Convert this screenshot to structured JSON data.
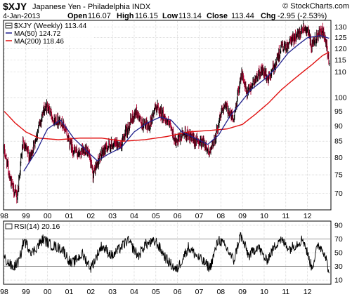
{
  "header": {
    "symbol": "$XJY",
    "name": "Japanese Yen - Philadelphia INDX",
    "brand": "© StockCharts.com",
    "date": "4-Jan-2013",
    "open_label": "Open",
    "open": "116.07",
    "high_label": "High",
    "high": "116.15",
    "low_label": "Low",
    "low": "113.14",
    "close_label": "Close",
    "close": "113.44",
    "chg_label": "Chg",
    "chg": "-2.95 (-2.53%)"
  },
  "legend": {
    "price": "$XJY (Weekly) 113.44",
    "ma50": "MA(50) 124.72",
    "ma200": "MA(200) 118.46"
  },
  "rsi_label": "RSI(14) 20.16",
  "colors": {
    "price": "#000000",
    "ma50": "#1f1f8c",
    "ma200": "#e01010",
    "down_bar": "#b00030",
    "grid": "#c8c8c8",
    "rsi_band": "#888888"
  },
  "chart_data": [
    {
      "type": "bar",
      "title": "$XJY Japanese Yen - Philadelphia INDX",
      "interval": "weekly",
      "ylim": [
        66,
        133
      ],
      "yscale": "log",
      "yticks": [
        70,
        75,
        80,
        85,
        90,
        95,
        100,
        110,
        115,
        120,
        125,
        130
      ],
      "x_ticks": [
        "98",
        "99",
        "00",
        "01",
        "02",
        "03",
        "04",
        "05",
        "06",
        "07",
        "08",
        "09",
        "10",
        "11",
        "12"
      ],
      "grid": true,
      "price_keypoints": [
        {
          "year": 1998.0,
          "close": 82
        },
        {
          "year": 1998.35,
          "close": 72
        },
        {
          "year": 1998.6,
          "close": 69
        },
        {
          "year": 1998.85,
          "close": 84
        },
        {
          "year": 1999.2,
          "close": 80
        },
        {
          "year": 1999.5,
          "close": 87
        },
        {
          "year": 1999.8,
          "close": 95
        },
        {
          "year": 2000.0,
          "close": 97
        },
        {
          "year": 2000.3,
          "close": 92
        },
        {
          "year": 2000.6,
          "close": 92
        },
        {
          "year": 2000.9,
          "close": 87
        },
        {
          "year": 2001.2,
          "close": 82
        },
        {
          "year": 2001.5,
          "close": 81
        },
        {
          "year": 2001.8,
          "close": 83
        },
        {
          "year": 2002.1,
          "close": 75
        },
        {
          "year": 2002.4,
          "close": 80
        },
        {
          "year": 2002.7,
          "close": 83
        },
        {
          "year": 2003.0,
          "close": 84
        },
        {
          "year": 2003.4,
          "close": 84
        },
        {
          "year": 2003.8,
          "close": 91
        },
        {
          "year": 2004.1,
          "close": 95
        },
        {
          "year": 2004.4,
          "close": 90
        },
        {
          "year": 2004.7,
          "close": 90
        },
        {
          "year": 2005.0,
          "close": 97
        },
        {
          "year": 2005.4,
          "close": 93
        },
        {
          "year": 2005.7,
          "close": 89
        },
        {
          "year": 2005.95,
          "close": 84
        },
        {
          "year": 2006.3,
          "close": 88
        },
        {
          "year": 2006.6,
          "close": 86
        },
        {
          "year": 2006.9,
          "close": 85
        },
        {
          "year": 2007.2,
          "close": 85
        },
        {
          "year": 2007.5,
          "close": 81
        },
        {
          "year": 2007.8,
          "close": 88
        },
        {
          "year": 2008.1,
          "close": 97
        },
        {
          "year": 2008.3,
          "close": 96
        },
        {
          "year": 2008.6,
          "close": 92
        },
        {
          "year": 2008.95,
          "close": 110
        },
        {
          "year": 2009.2,
          "close": 101
        },
        {
          "year": 2009.5,
          "close": 106
        },
        {
          "year": 2009.9,
          "close": 111
        },
        {
          "year": 2010.2,
          "close": 107
        },
        {
          "year": 2010.5,
          "close": 113
        },
        {
          "year": 2010.8,
          "close": 121
        },
        {
          "year": 2011.0,
          "close": 120
        },
        {
          "year": 2011.2,
          "close": 123
        },
        {
          "year": 2011.5,
          "close": 126
        },
        {
          "year": 2011.8,
          "close": 130
        },
        {
          "year": 2012.0,
          "close": 129
        },
        {
          "year": 2012.2,
          "close": 120
        },
        {
          "year": 2012.45,
          "close": 126
        },
        {
          "year": 2012.7,
          "close": 128
        },
        {
          "year": 2012.85,
          "close": 122
        },
        {
          "year": 2013.0,
          "close": 113.44
        }
      ],
      "ma50_keypoints": [
        {
          "year": 1998.9,
          "value": 76
        },
        {
          "year": 1999.5,
          "value": 82
        },
        {
          "year": 2000.0,
          "value": 89
        },
        {
          "year": 2000.6,
          "value": 92
        },
        {
          "year": 2001.2,
          "value": 86
        },
        {
          "year": 2001.8,
          "value": 82
        },
        {
          "year": 2002.3,
          "value": 79
        },
        {
          "year": 2002.8,
          "value": 81
        },
        {
          "year": 2003.4,
          "value": 83
        },
        {
          "year": 2004.0,
          "value": 88
        },
        {
          "year": 2004.6,
          "value": 91
        },
        {
          "year": 2005.2,
          "value": 93
        },
        {
          "year": 2005.7,
          "value": 92
        },
        {
          "year": 2006.2,
          "value": 88
        },
        {
          "year": 2006.8,
          "value": 86
        },
        {
          "year": 2007.4,
          "value": 84
        },
        {
          "year": 2007.9,
          "value": 87
        },
        {
          "year": 2008.4,
          "value": 93
        },
        {
          "year": 2008.9,
          "value": 98
        },
        {
          "year": 2009.4,
          "value": 103
        },
        {
          "year": 2010.0,
          "value": 107
        },
        {
          "year": 2010.6,
          "value": 112
        },
        {
          "year": 2011.1,
          "value": 118
        },
        {
          "year": 2011.6,
          "value": 122
        },
        {
          "year": 2012.0,
          "value": 125
        },
        {
          "year": 2012.6,
          "value": 126
        },
        {
          "year": 2013.0,
          "value": 124.72
        }
      ],
      "ma200_keypoints": [
        {
          "year": 1998.0,
          "value": 95
        },
        {
          "year": 1998.5,
          "value": 91
        },
        {
          "year": 1999.0,
          "value": 88
        },
        {
          "year": 1999.6,
          "value": 86
        },
        {
          "year": 2000.5,
          "value": 85.5
        },
        {
          "year": 2001.5,
          "value": 86
        },
        {
          "year": 2002.5,
          "value": 86
        },
        {
          "year": 2003.5,
          "value": 85
        },
        {
          "year": 2004.5,
          "value": 85.5
        },
        {
          "year": 2005.5,
          "value": 86.5
        },
        {
          "year": 2006.5,
          "value": 88
        },
        {
          "year": 2007.5,
          "value": 88.5
        },
        {
          "year": 2008.3,
          "value": 89
        },
        {
          "year": 2009.0,
          "value": 90.5
        },
        {
          "year": 2009.6,
          "value": 94
        },
        {
          "year": 2010.2,
          "value": 98
        },
        {
          "year": 2010.8,
          "value": 103
        },
        {
          "year": 2011.5,
          "value": 108
        },
        {
          "year": 2012.2,
          "value": 113
        },
        {
          "year": 2012.7,
          "value": 117
        },
        {
          "year": 2013.0,
          "value": 118.46
        }
      ]
    },
    {
      "type": "line",
      "title": "RSI(14) 20.16",
      "ylim": [
        5,
        95
      ],
      "yticks": [
        10,
        30,
        50,
        70,
        90
      ],
      "bands": [
        30,
        70
      ],
      "x_ticks": [
        "98",
        "99",
        "00",
        "01",
        "02",
        "03",
        "04",
        "05",
        "06",
        "07",
        "08",
        "09",
        "10",
        "11",
        "12"
      ],
      "rsi_keypoints": [
        {
          "year": 1998.0,
          "value": 42
        },
        {
          "year": 1998.4,
          "value": 28
        },
        {
          "year": 1998.7,
          "value": 38
        },
        {
          "year": 1998.9,
          "value": 68
        },
        {
          "year": 1999.3,
          "value": 50
        },
        {
          "year": 1999.8,
          "value": 70
        },
        {
          "year": 2000.1,
          "value": 62
        },
        {
          "year": 2000.7,
          "value": 55
        },
        {
          "year": 2001.1,
          "value": 33
        },
        {
          "year": 2001.6,
          "value": 48
        },
        {
          "year": 2002.0,
          "value": 28
        },
        {
          "year": 2002.5,
          "value": 60
        },
        {
          "year": 2003.0,
          "value": 45
        },
        {
          "year": 2003.7,
          "value": 68
        },
        {
          "year": 2004.2,
          "value": 45
        },
        {
          "year": 2004.5,
          "value": 62
        },
        {
          "year": 2005.0,
          "value": 66
        },
        {
          "year": 2005.5,
          "value": 40
        },
        {
          "year": 2005.95,
          "value": 24
        },
        {
          "year": 2006.5,
          "value": 58
        },
        {
          "year": 2007.0,
          "value": 42
        },
        {
          "year": 2007.5,
          "value": 28
        },
        {
          "year": 2007.9,
          "value": 70
        },
        {
          "year": 2008.3,
          "value": 55
        },
        {
          "year": 2008.6,
          "value": 38
        },
        {
          "year": 2008.9,
          "value": 76
        },
        {
          "year": 2009.3,
          "value": 45
        },
        {
          "year": 2009.7,
          "value": 60
        },
        {
          "year": 2010.1,
          "value": 38
        },
        {
          "year": 2010.7,
          "value": 70
        },
        {
          "year": 2011.2,
          "value": 56
        },
        {
          "year": 2011.8,
          "value": 70
        },
        {
          "year": 2012.2,
          "value": 28
        },
        {
          "year": 2012.5,
          "value": 62
        },
        {
          "year": 2012.8,
          "value": 50
        },
        {
          "year": 2013.0,
          "value": 20.16
        }
      ]
    }
  ]
}
